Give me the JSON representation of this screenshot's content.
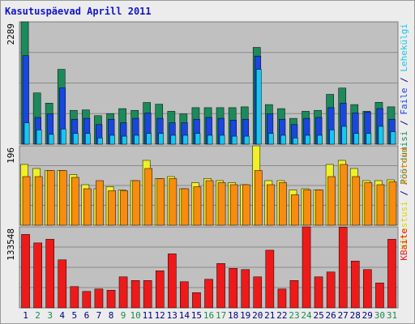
{
  "title": "Kasutuspäevad Aprill 2011",
  "colors": {
    "panel_bg": "#c0c0c0",
    "grid": "#8a8a8a",
    "visits": "#1c8a5a",
    "pages": "#1a46e0",
    "files": "#16c8f0",
    "hits": "#f0f028",
    "unique": "#f78c10",
    "kbytes": "#ee1a1a",
    "weekday_label": "#000080",
    "weekend_label": "#1a8a4a"
  },
  "right_labels": {
    "top": [
      {
        "text": "Pöördumisi",
        "color": "#1c8a5a"
      },
      {
        "text": " / ",
        "color": "#000080"
      },
      {
        "text": "Faile",
        "color": "#1a46e0"
      },
      {
        "text": " / ",
        "color": "#000080"
      },
      {
        "text": "Lehekülgi",
        "color": "#16c8f0"
      }
    ],
    "middle": [
      {
        "text": "Külastusi",
        "color": "#d8d800"
      },
      {
        "text": " / ",
        "color": "#000080"
      },
      {
        "text": "Aruteid",
        "color": "#f78c10"
      }
    ],
    "bottom": [
      {
        "text": "KBaite",
        "color": "#ee1a1a"
      }
    ]
  },
  "chart_data": {
    "type": "bar",
    "x": [
      "1",
      "2",
      "3",
      "4",
      "5",
      "6",
      "7",
      "8",
      "9",
      "10",
      "11",
      "12",
      "13",
      "14",
      "15",
      "16",
      "17",
      "18",
      "19",
      "20",
      "21",
      "22",
      "23",
      "24",
      "25",
      "26",
      "27",
      "28",
      "29",
      "30",
      "31"
    ],
    "weekend_days": [
      "2",
      "3",
      "9",
      "10",
      "16",
      "17",
      "23",
      "24",
      "30",
      "31"
    ],
    "panels": [
      {
        "name": "hits_files_pages",
        "max_label": "2289",
        "ymax": 2289,
        "series": [
          {
            "name": "Pöördumisi",
            "values": [
              2289,
              959,
              769,
              1400,
              633,
              641,
              533,
              573,
              666,
              633,
              781,
              749,
              616,
              566,
              683,
              683,
              683,
              683,
              699,
              1811,
              741,
              666,
              483,
              616,
              633,
              933,
              1050,
              741,
              616,
              783,
              699
            ]
          },
          {
            "name": "Faile",
            "values": [
              1655,
              500,
              567,
              1050,
              467,
              483,
              367,
              467,
              400,
              483,
              583,
              483,
              400,
              400,
              467,
              500,
              483,
              450,
              467,
              1650,
              567,
              467,
              367,
              483,
              500,
              683,
              767,
              583,
              600,
              667,
              467
            ]
          },
          {
            "name": "Lehekülgi",
            "values": [
              400,
              267,
              183,
              283,
              200,
              200,
              117,
              167,
              150,
              167,
              200,
              200,
              167,
              167,
              200,
              167,
              167,
              150,
              150,
              1400,
              200,
              167,
              117,
              167,
              167,
              267,
              333,
              200,
              200,
              333,
              233
            ]
          }
        ]
      },
      {
        "name": "visits_sites",
        "max_label": "196",
        "ymax": 196,
        "series": [
          {
            "name": "Külastusi",
            "values": [
              150,
              140,
              135,
              135,
              125,
              100,
              90,
              95,
              87,
              110,
              160,
              115,
              120,
              90,
              105,
              115,
              110,
              105,
              100,
              196,
              110,
              110,
              87,
              90,
              87,
              150,
              160,
              140,
              110,
              110,
              112
            ]
          },
          {
            "name": "Aruteid",
            "values": [
              120,
              120,
              135,
              135,
              118,
              90,
              110,
              85,
              85,
              110,
              140,
              115,
              115,
              90,
              95,
              110,
              105,
              100,
              100,
              135,
              100,
              105,
              75,
              87,
              87,
              120,
              150,
              120,
              105,
              100,
              107
            ]
          }
        ]
      },
      {
        "name": "kbytes",
        "max_label": "133548",
        "ymax": 133548,
        "series": [
          {
            "name": "KBaite",
            "values": [
              121000,
              107000,
              113000,
              79000,
              35000,
              27000,
              31000,
              29000,
              51000,
              45000,
              45000,
              61000,
              89000,
              43000,
              25000,
              47000,
              73000,
              65000,
              63000,
              51000,
              95000,
              31000,
              45000,
              133548,
              51000,
              59000,
              133000,
              77000,
              63000,
              41000,
              113000
            ]
          }
        ]
      }
    ]
  }
}
